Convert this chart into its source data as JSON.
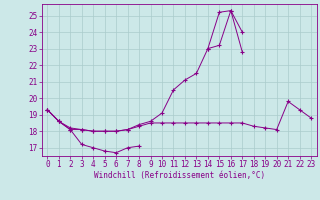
{
  "xlabel": "Windchill (Refroidissement éolien,°C)",
  "x": [
    0,
    1,
    2,
    3,
    4,
    5,
    6,
    7,
    8,
    9,
    10,
    11,
    12,
    13,
    14,
    15,
    16,
    17,
    18,
    19,
    20,
    21,
    22,
    23
  ],
  "line1_y": [
    19.3,
    18.6,
    18.1,
    17.2,
    17.0,
    16.8,
    16.7,
    17.0,
    17.1,
    null,
    null,
    null,
    null,
    null,
    null,
    null,
    null,
    null,
    null,
    null,
    null,
    null,
    null,
    null
  ],
  "line2_y": [
    19.3,
    18.6,
    18.1,
    18.1,
    18.0,
    18.0,
    18.0,
    18.1,
    18.4,
    18.6,
    19.1,
    20.5,
    21.1,
    21.5,
    23.0,
    25.2,
    25.3,
    24.0,
    null,
    null,
    null,
    null,
    null,
    null
  ],
  "line3_y": [
    19.3,
    18.6,
    18.2,
    18.1,
    18.0,
    18.0,
    18.0,
    18.1,
    18.3,
    18.5,
    18.5,
    18.5,
    18.5,
    18.5,
    18.5,
    18.5,
    18.5,
    18.5,
    18.3,
    18.2,
    18.1,
    19.8,
    19.3,
    18.8
  ],
  "line4_y": [
    null,
    null,
    null,
    null,
    null,
    null,
    null,
    null,
    null,
    null,
    null,
    null,
    null,
    null,
    23.0,
    23.2,
    25.3,
    22.8,
    null,
    null,
    null,
    null,
    null,
    null
  ],
  "bg_color": "#cce8e8",
  "line_color": "#880088",
  "grid_color": "#aacccc",
  "ylim": [
    16.5,
    25.7
  ],
  "xlim": [
    -0.5,
    23.5
  ],
  "yticks": [
    17,
    18,
    19,
    20,
    21,
    22,
    23,
    24,
    25
  ],
  "xticks": [
    0,
    1,
    2,
    3,
    4,
    5,
    6,
    7,
    8,
    9,
    10,
    11,
    12,
    13,
    14,
    15,
    16,
    17,
    18,
    19,
    20,
    21,
    22,
    23
  ],
  "tick_fontsize": 5.5,
  "xlabel_fontsize": 5.5
}
